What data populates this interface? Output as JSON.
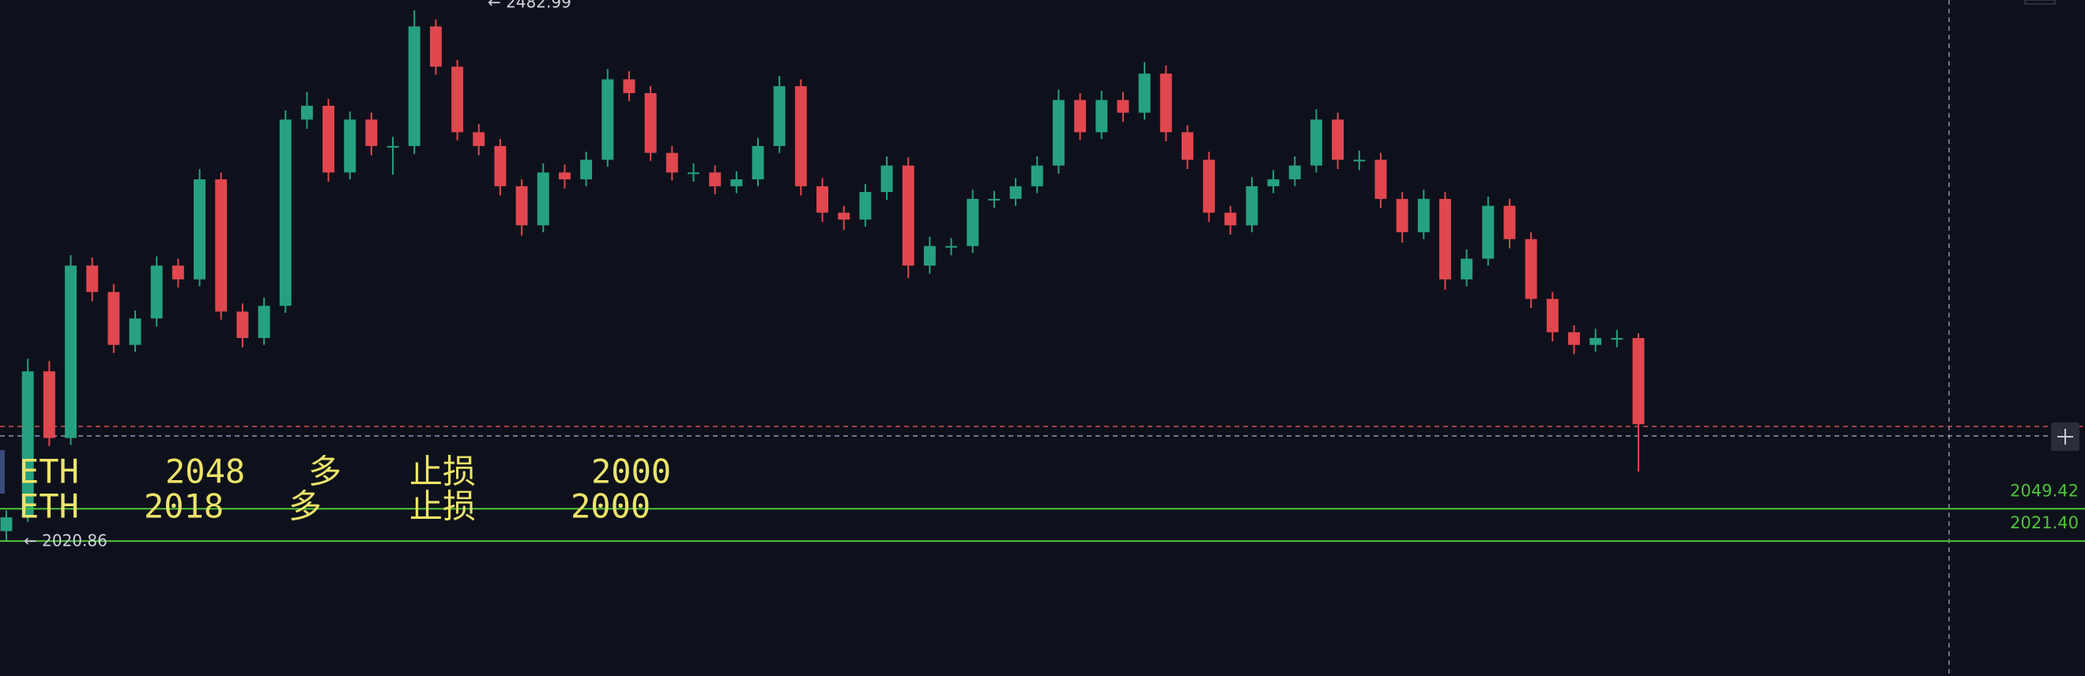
{
  "chart_data": {
    "type": "candlestick",
    "ylim": [
      1904,
      2492
    ],
    "up_color": "#26a17f",
    "down_color": "#e0474f",
    "candles": [
      [
        2030,
        2048,
        2020.86,
        2042
      ],
      [
        2042,
        2180,
        2038,
        2169
      ],
      [
        2169,
        2178,
        2104,
        2111
      ],
      [
        2111,
        2270,
        2105,
        2261
      ],
      [
        2261,
        2268,
        2230,
        2238
      ],
      [
        2238,
        2245,
        2185,
        2192
      ],
      [
        2192,
        2222,
        2186,
        2215
      ],
      [
        2215,
        2269,
        2208,
        2261
      ],
      [
        2261,
        2267,
        2242,
        2249
      ],
      [
        2249,
        2345,
        2243,
        2336
      ],
      [
        2336,
        2342,
        2214,
        2221
      ],
      [
        2221,
        2228,
        2190,
        2198
      ],
      [
        2198,
        2233,
        2192,
        2226
      ],
      [
        2226,
        2396,
        2220,
        2388
      ],
      [
        2388,
        2412,
        2380,
        2400
      ],
      [
        2400,
        2406,
        2334,
        2342
      ],
      [
        2342,
        2395,
        2336,
        2388
      ],
      [
        2388,
        2394,
        2357,
        2365
      ],
      [
        2365,
        2373,
        2340,
        2365
      ],
      [
        2365,
        2482.99,
        2358,
        2469
      ],
      [
        2469,
        2475,
        2427,
        2434
      ],
      [
        2434,
        2440,
        2370,
        2377
      ],
      [
        2377,
        2384,
        2357,
        2365
      ],
      [
        2365,
        2371,
        2322,
        2330
      ],
      [
        2330,
        2336,
        2287,
        2296
      ],
      [
        2296,
        2350,
        2290,
        2342
      ],
      [
        2342,
        2349,
        2328,
        2336
      ],
      [
        2336,
        2360,
        2330,
        2353
      ],
      [
        2353,
        2432,
        2347,
        2423
      ],
      [
        2423,
        2430,
        2404,
        2411
      ],
      [
        2411,
        2417,
        2352,
        2359
      ],
      [
        2359,
        2365,
        2335,
        2342
      ],
      [
        2342,
        2350,
        2334,
        2342
      ],
      [
        2342,
        2348,
        2323,
        2330
      ],
      [
        2330,
        2343,
        2324,
        2336
      ],
      [
        2336,
        2372,
        2330,
        2365
      ],
      [
        2365,
        2426,
        2359,
        2417
      ],
      [
        2417,
        2423,
        2322,
        2330
      ],
      [
        2330,
        2337,
        2299,
        2307
      ],
      [
        2307,
        2313,
        2292,
        2301
      ],
      [
        2301,
        2332,
        2295,
        2325
      ],
      [
        2325,
        2356,
        2318,
        2348
      ],
      [
        2348,
        2355,
        2250,
        2261
      ],
      [
        2261,
        2286,
        2254,
        2278
      ],
      [
        2278,
        2285,
        2270,
        2278
      ],
      [
        2278,
        2327,
        2272,
        2319
      ],
      [
        2319,
        2326,
        2311,
        2319
      ],
      [
        2319,
        2337,
        2313,
        2330
      ],
      [
        2330,
        2356,
        2324,
        2348
      ],
      [
        2348,
        2414,
        2341,
        2405
      ],
      [
        2405,
        2411,
        2370,
        2377
      ],
      [
        2377,
        2413,
        2371,
        2405
      ],
      [
        2405,
        2412,
        2386,
        2394
      ],
      [
        2394,
        2438,
        2388,
        2428
      ],
      [
        2428,
        2435,
        2369,
        2377
      ],
      [
        2377,
        2383,
        2345,
        2353
      ],
      [
        2353,
        2360,
        2299,
        2307
      ],
      [
        2307,
        2313,
        2288,
        2296
      ],
      [
        2296,
        2338,
        2290,
        2330
      ],
      [
        2330,
        2344,
        2324,
        2336
      ],
      [
        2336,
        2356,
        2330,
        2348
      ],
      [
        2348,
        2397,
        2342,
        2388
      ],
      [
        2388,
        2394,
        2345,
        2353
      ],
      [
        2353,
        2361,
        2344,
        2353
      ],
      [
        2353,
        2359,
        2311,
        2319
      ],
      [
        2319,
        2325,
        2281,
        2290
      ],
      [
        2290,
        2327,
        2284,
        2319
      ],
      [
        2319,
        2325,
        2240,
        2249
      ],
      [
        2249,
        2275,
        2243,
        2267
      ],
      [
        2267,
        2321,
        2261,
        2313
      ],
      [
        2313,
        2319,
        2276,
        2284
      ],
      [
        2284,
        2290,
        2224,
        2232
      ],
      [
        2232,
        2238,
        2195,
        2203
      ],
      [
        2203,
        2209,
        2184,
        2192
      ],
      [
        2192,
        2206,
        2186,
        2198
      ],
      [
        2198,
        2205,
        2190,
        2198
      ],
      [
        2198,
        2202,
        2082,
        2123
      ]
    ],
    "high_marker": {
      "value": 2482.99,
      "label": "← 2482.99"
    },
    "low_marker": {
      "value": 2020.86,
      "label": "← 2020.86"
    },
    "price_lines": [
      {
        "value": 2049.42,
        "color": "#4fc23a"
      },
      {
        "value": 2021.4,
        "label": "2021.40",
        "color": "#4fc23a"
      }
    ],
    "notes": [
      [
        "ETH",
        "2048",
        "多",
        "止损",
        "2000"
      ],
      [
        "ETH",
        "2018",
        "多",
        "止损",
        "2000"
      ]
    ]
  }
}
